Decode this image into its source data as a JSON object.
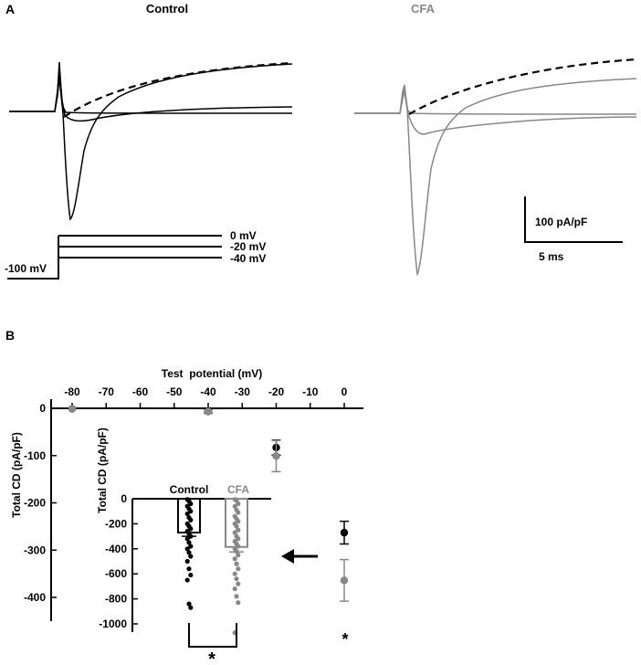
{
  "panel_a": {
    "label": "A",
    "control_title": "Control",
    "cfa_title": "CFA",
    "protocol": {
      "holding": "-100 mV",
      "steps": [
        "0 mV",
        "-20 mV",
        "-40 mV"
      ]
    },
    "scalebar": {
      "current": "100 pA/pF",
      "time": "5 ms"
    },
    "colors": {
      "control": "#000000",
      "cfa": "#888888"
    }
  },
  "panel_b": {
    "label": "B",
    "colors": {
      "control": "#000000",
      "cfa": "#888888"
    }
  },
  "chart_data": [
    {
      "type": "scatter",
      "title": "",
      "xlabel": "Test  potential (mV)",
      "ylabel": "Total CD (pA/pF)",
      "xlim": [
        -85,
        5
      ],
      "ylim": [
        -460,
        0
      ],
      "x_ticks": [
        "-80",
        "-70",
        "-60",
        "-50",
        "-40",
        "-30",
        "-20",
        "-10",
        "0"
      ],
      "y_ticks": [
        "0",
        "-100",
        "-200",
        "-300",
        "-400"
      ],
      "error_bars": true,
      "series": [
        {
          "name": "Control",
          "color": "#000000",
          "points": [
            {
              "x": -80,
              "y": -1,
              "err": 2
            },
            {
              "x": -40,
              "y": -6,
              "err": 4
            },
            {
              "x": -20,
              "y": -83,
              "err": 16
            },
            {
              "x": 0,
              "y": -263,
              "err": 24
            }
          ]
        },
        {
          "name": "CFA",
          "color": "#888888",
          "points": [
            {
              "x": -80,
              "y": -1,
              "err": 2
            },
            {
              "x": -40,
              "y": -7,
              "err": 4
            },
            {
              "x": -20,
              "y": -101,
              "err": 33
            },
            {
              "x": 0,
              "y": -364,
              "err": 44
            }
          ]
        }
      ],
      "annotations": [
        "*"
      ]
    },
    {
      "type": "bar",
      "title": "",
      "xlabel": "",
      "ylabel": "Total CD (pA/pF)",
      "categories": [
        "Control",
        "CFA"
      ],
      "values": [
        -270,
        -385
      ],
      "errors": [
        30,
        40
      ],
      "ylim": [
        -1050,
        0
      ],
      "y_ticks": [
        "0",
        "-200",
        "-400",
        "-600",
        "-800",
        "-1000"
      ],
      "points": {
        "Control": [
          -5,
          -20,
          -40,
          -60,
          -80,
          -100,
          -120,
          -150,
          -170,
          -200,
          -220,
          -240,
          -260,
          -280,
          -300,
          -320,
          -350,
          -380,
          -400,
          -430,
          -460,
          -500,
          -560,
          -610,
          -650,
          -840,
          -870
        ],
        "CFA": [
          -5,
          -15,
          -40,
          -60,
          -90,
          -110,
          -140,
          -160,
          -180,
          -200,
          -220,
          -250,
          -270,
          -300,
          -320,
          -340,
          -360,
          -380,
          -400,
          -420,
          -450,
          -480,
          -520,
          -560,
          -600,
          -640,
          -680,
          -720,
          -780,
          -830,
          -1070
        ]
      },
      "significance": "*"
    }
  ]
}
